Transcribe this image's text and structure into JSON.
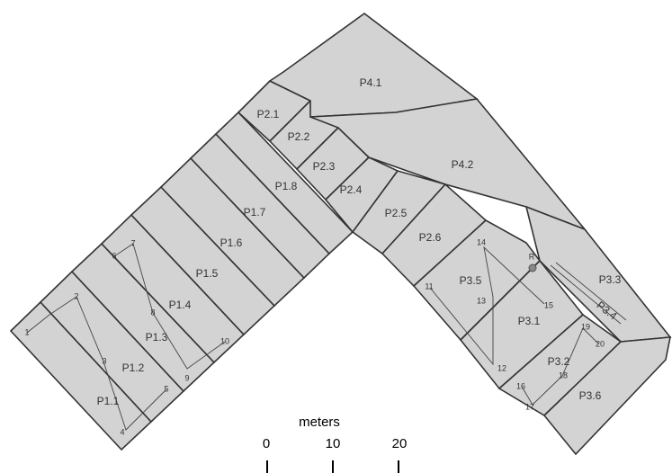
{
  "parcels": [
    {
      "label": "P1.1"
    },
    {
      "label": "P1.2"
    },
    {
      "label": "P1.3"
    },
    {
      "label": "P1.4"
    },
    {
      "label": "P1.5"
    },
    {
      "label": "P1.6"
    },
    {
      "label": "P1.7"
    },
    {
      "label": "P1.8"
    },
    {
      "label": "P2.1"
    },
    {
      "label": "P2.2"
    },
    {
      "label": "P2.3"
    },
    {
      "label": "P2.4"
    },
    {
      "label": "P2.5"
    },
    {
      "label": "P2.6"
    },
    {
      "label": "P3.1"
    },
    {
      "label": "P3.2"
    },
    {
      "label": "P3.3"
    },
    {
      "label": "P3.4"
    },
    {
      "label": "P3.5"
    },
    {
      "label": "P3.6"
    },
    {
      "label": "P4.1"
    },
    {
      "label": "P4.2"
    }
  ],
  "survey_points": [
    "1",
    "2",
    "3",
    "4",
    "5",
    "6",
    "7",
    "8",
    "9",
    "10",
    "11",
    "12",
    "13",
    "14",
    "15",
    "16",
    "17",
    "18",
    "19",
    "20"
  ],
  "marker": "R",
  "scale_bar": {
    "title": "meters",
    "labels": [
      "0",
      "10",
      "20"
    ]
  }
}
